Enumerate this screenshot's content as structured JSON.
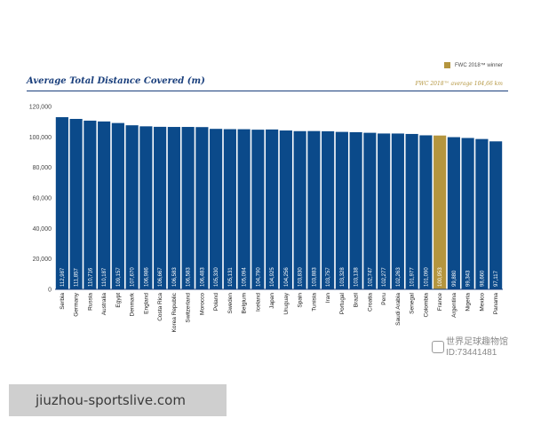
{
  "legend": {
    "label": "FWC 2018™ winner",
    "color": "#b4953e"
  },
  "average_note": "FWC 2018™ average 104,66 km",
  "watermark": {
    "line1": "世界足球趣物馆",
    "line2": "ID:73441481"
  },
  "site_banner": "jiuzhou-sportslive.com",
  "colors": {
    "bar": "#0b4a8a",
    "highlight": "#b4953e",
    "title": "#1a3f7c"
  },
  "chart_data": {
    "type": "bar",
    "title": "Average Total Distance Covered (m)",
    "xlabel": "",
    "ylabel": "",
    "ylim": [
      0,
      120000
    ],
    "yticks": [
      0,
      20000,
      40000,
      60000,
      80000,
      100000,
      120000
    ],
    "ytick_labels": [
      "0",
      "20,000",
      "40,000",
      "60,000",
      "80,000",
      "100,000",
      "120,000"
    ],
    "grid": false,
    "highlight_category": "France",
    "categories": [
      "Serbia",
      "Germany",
      "Russia",
      "Australia",
      "Egypt",
      "Denmark",
      "England",
      "Costa Rica",
      "Korea Republic",
      "Switzerland",
      "Morocco",
      "Poland",
      "Sweden",
      "Belgium",
      "Iceland",
      "Japan",
      "Uruguay",
      "Spain",
      "Tunisia",
      "Iran",
      "Portugal",
      "Brazil",
      "Croatia",
      "Peru",
      "Saudi Arabia",
      "Senegal",
      "Colombia",
      "France",
      "Argentina",
      "Nigeria",
      "Mexico",
      "Panama"
    ],
    "values": [
      112987,
      111857,
      110716,
      110187,
      109157,
      107670,
      106986,
      106667,
      106583,
      106583,
      106483,
      105330,
      105131,
      105094,
      104790,
      104925,
      104256,
      103830,
      103883,
      103757,
      103328,
      103138,
      102747,
      102277,
      102263,
      101977,
      101090,
      100953,
      99880,
      99343,
      98660,
      97117
    ],
    "value_labels": [
      "112,987",
      "111,857",
      "110,716",
      "110,187",
      "109,157",
      "107,670",
      "106,986",
      "106,667",
      "106,583",
      "106,583",
      "106,483",
      "105,330",
      "105,131",
      "105,094",
      "104,790",
      "104,925",
      "104,256",
      "103,830",
      "103,883",
      "103,757",
      "103,328",
      "103,138",
      "102,747",
      "102,277",
      "102,263",
      "101,977",
      "101,090",
      "100,953",
      "99,880",
      "99,343",
      "98,660",
      "97,117"
    ]
  }
}
